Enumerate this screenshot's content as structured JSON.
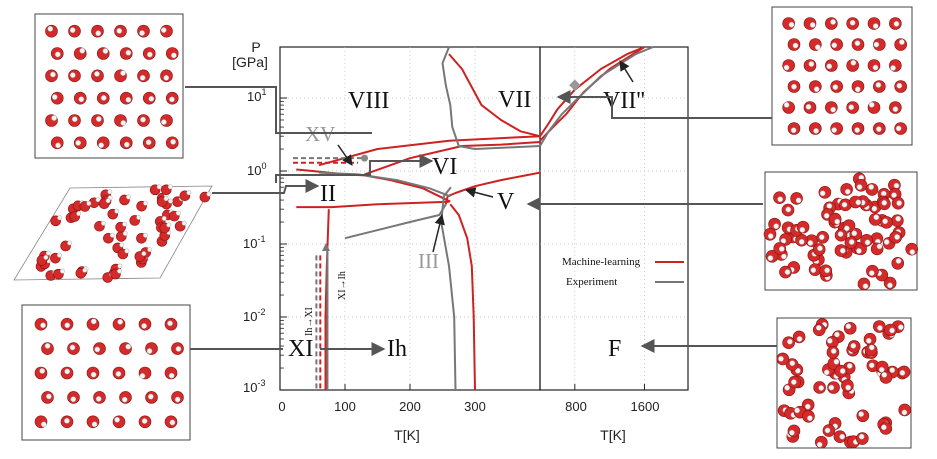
{
  "figure": {
    "y_axis_label_line1": "P",
    "y_axis_label_line2": "[GPa]",
    "x_axis_label_left": "T[K]",
    "x_axis_label_right": "T[K]",
    "y_ticks": [
      {
        "base": "10",
        "exp": "1"
      },
      {
        "base": "10",
        "exp": "0"
      },
      {
        "base": "10",
        "exp": "-1"
      },
      {
        "base": "10",
        "exp": "-2"
      },
      {
        "base": "10",
        "exp": "-3"
      }
    ],
    "x_ticks_left": [
      "0",
      "100",
      "200",
      "300"
    ],
    "x_ticks_right": [
      "800",
      "1600"
    ],
    "legend": {
      "placement": "lower-right of right panel",
      "entries": [
        {
          "label": "Machine-learning",
          "color": "#cc2222"
        },
        {
          "label": "Experiment",
          "color": "#777777"
        }
      ]
    },
    "phase_labels": {
      "viii": "VIII",
      "vii": "VII",
      "vii2": "VII''",
      "xv": "XV",
      "vi": "VI",
      "ii": "II",
      "v": "V",
      "iii": "III",
      "xi": "XI",
      "ih": "Ih",
      "f": "F",
      "ih_to_xi": "Ih→XI",
      "xi_to_ih": "XI→Ih"
    },
    "colors": {
      "ml": "#cc2222",
      "exp": "#777777",
      "exp_light": "#999999",
      "connector": "#555555"
    }
  },
  "chart_data": {
    "type": "line",
    "title": "",
    "xlabel": "T[K]",
    "ylabel": "P [GPa]",
    "yscale": "log",
    "ylim": [
      0.001,
      50
    ],
    "panels": [
      {
        "name": "low-T",
        "xlim": [
          0,
          400
        ]
      },
      {
        "name": "high-T",
        "xlim": [
          400,
          2100
        ]
      }
    ],
    "series": [
      {
        "name": "Machine-learning",
        "color": "#cc2222",
        "lines": [
          [
            [
              255,
              0.35
            ],
            [
              258,
              0.45
            ],
            [
              270,
              0.5
            ],
            [
              300,
              0.62
            ],
            [
              340,
              0.75
            ],
            [
              400,
              0.95
            ]
          ],
          [
            [
              300,
              0.001
            ],
            [
              298,
              0.01
            ],
            [
              295,
              0.05
            ],
            [
              288,
              0.12
            ],
            [
              275,
              0.25
            ],
            [
              262,
              0.35
            ]
          ],
          [
            [
              25,
              1.05
            ],
            [
              50,
              1.0
            ],
            [
              100,
              0.9
            ],
            [
              130,
              0.87
            ],
            [
              170,
              0.75
            ],
            [
              220,
              0.58
            ],
            [
              262,
              0.38
            ]
          ],
          [
            [
              25,
              0.32
            ],
            [
              80,
              0.32
            ],
            [
              150,
              0.35
            ],
            [
              260,
              0.38
            ]
          ],
          [
            [
              70,
              0.001
            ],
            [
              70,
              0.01
            ],
            [
              72,
              0.05
            ],
            [
              75,
              0.3
            ]
          ],
          [
            [
              130,
              0.9
            ],
            [
              200,
              1.5
            ],
            [
              280,
              2.2
            ],
            [
              340,
              2.3
            ],
            [
              400,
              2.5
            ]
          ],
          [
            [
              60,
              1.2
            ],
            [
              150,
              2.0
            ],
            [
              260,
              2.6
            ],
            [
              400,
              3.0
            ]
          ],
          [
            [
              260,
              40
            ],
            [
              280,
              25
            ],
            [
              310,
              8
            ],
            [
              340,
              5
            ],
            [
              370,
              3.5
            ],
            [
              400,
              3.0
            ]
          ],
          [
            [
              400,
              3.0
            ],
            [
              500,
              4.5
            ],
            [
              600,
              7
            ],
            [
              800,
              13
            ],
            [
              1100,
              25
            ],
            [
              1400,
              40
            ],
            [
              1600,
              50
            ]
          ],
          [
            [
              400,
              2.6
            ],
            [
              550,
              4.0
            ],
            [
              700,
              6
            ],
            [
              900,
              12
            ],
            [
              1200,
              25
            ],
            [
              1600,
              50
            ]
          ]
        ]
      },
      {
        "name": "Experiment",
        "color": "#777777",
        "lines": [
          [
            [
              270,
              0.001
            ],
            [
              268,
              0.01
            ],
            [
              260,
              0.05
            ],
            [
              248,
              0.2
            ],
            [
              252,
              0.45
            ],
            [
              263,
              0.6
            ]
          ],
          [
            [
              100,
              0.12
            ],
            [
              200,
              0.2
            ],
            [
              245,
              0.25
            ],
            [
              255,
              0.35
            ]
          ],
          [
            [
              260,
              50
            ],
            [
              250,
              30
            ],
            [
              255,
              15
            ],
            [
              262,
              8
            ],
            [
              265,
              4
            ],
            [
              275,
              2.2
            ],
            [
              300,
              2.0
            ],
            [
              350,
              2.1
            ],
            [
              400,
              2.2
            ]
          ],
          [
            [
              60,
              0.95
            ],
            [
              120,
              0.9
            ],
            [
              180,
              0.75
            ],
            [
              230,
              0.58
            ],
            [
              262,
              0.45
            ]
          ],
          [
            [
              400,
              2.2
            ],
            [
              500,
              3.5
            ],
            [
              650,
              6
            ],
            [
              800,
              9
            ],
            [
              1100,
              20
            ],
            [
              1500,
              40
            ],
            [
              1700,
              50
            ]
          ]
        ]
      }
    ],
    "annotations": [
      "VIII",
      "VII",
      "VII''",
      "XV",
      "VI",
      "II",
      "V",
      "III",
      "XI",
      "Ih",
      "F",
      "Ih→XI",
      "XI→Ih"
    ]
  }
}
